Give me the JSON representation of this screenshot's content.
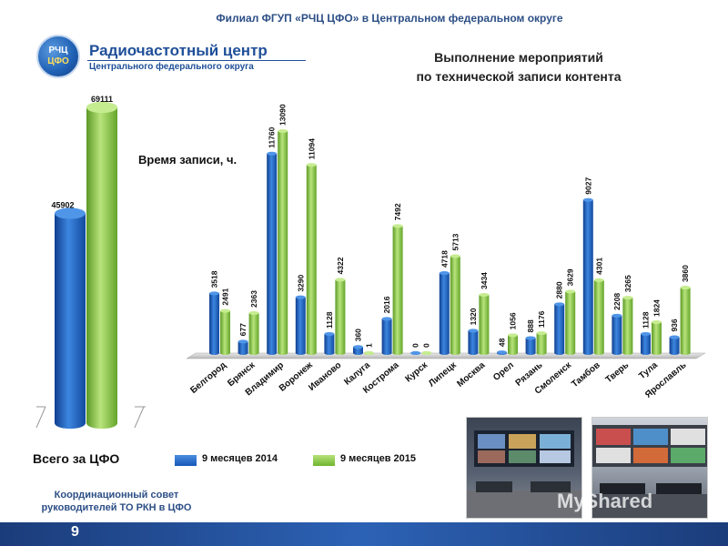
{
  "header": {
    "title": "Филиал ФГУП «РЧЦ ЦФО» в Центральном федеральном округе"
  },
  "logo": {
    "badge_line1": "РЧЦ",
    "badge_line2": "ЦФО",
    "title": "Радиочастотный центр",
    "subtitle": "Центрального федерального округа"
  },
  "chart_title_line1": "Выполнение мероприятий",
  "chart_title_line2": "по технической записи контента",
  "footer": {
    "text_line1": "Координационный совет",
    "text_line2": "руководителей ТО РКН в ЦФО",
    "page": "9"
  },
  "watermark": "MyShared",
  "colors": {
    "series2014": "#1f66c6",
    "series2015": "#8cc84b",
    "header": "#2d4f86",
    "bar": "#1b3c7a"
  },
  "chart_data": [
    {
      "type": "bar",
      "title": "Всего за ЦФО",
      "categories": [
        ""
      ],
      "series": [
        {
          "name": "9 месяцев 2014",
          "values": [
            45902
          ]
        },
        {
          "name": "9 месяцев 2015",
          "values": [
            69111
          ]
        }
      ],
      "ylim": [
        0,
        69111
      ]
    },
    {
      "type": "bar",
      "title": "Выполнение мероприятий по технической записи контента",
      "ylabel": "Время записи, ч.",
      "xlabel": "",
      "categories": [
        "Белгород",
        "Брянск",
        "Владимир",
        "Воронеж",
        "Иваново",
        "Калуга",
        "Кострома",
        "Курск",
        "Липецк",
        "Москва",
        "Орел",
        "Рязань",
        "Смоленск",
        "Тамбов",
        "Тверь",
        "Тула",
        "Ярославль"
      ],
      "series": [
        {
          "name": "9 месяцев 2014",
          "values": [
            3518,
            677,
            11760,
            3290,
            1128,
            360,
            2016,
            0,
            4718,
            1320,
            48,
            888,
            2880,
            9027,
            2208,
            1128,
            936
          ]
        },
        {
          "name": "9 месяцев 2015",
          "values": [
            2491,
            2363,
            13090,
            11094,
            4322,
            1,
            7492,
            0,
            5713,
            3434,
            1056,
            1176,
            3629,
            4301,
            3265,
            1824,
            3860
          ]
        }
      ],
      "ylim": [
        0,
        13090
      ],
      "legend": "bottom"
    }
  ]
}
